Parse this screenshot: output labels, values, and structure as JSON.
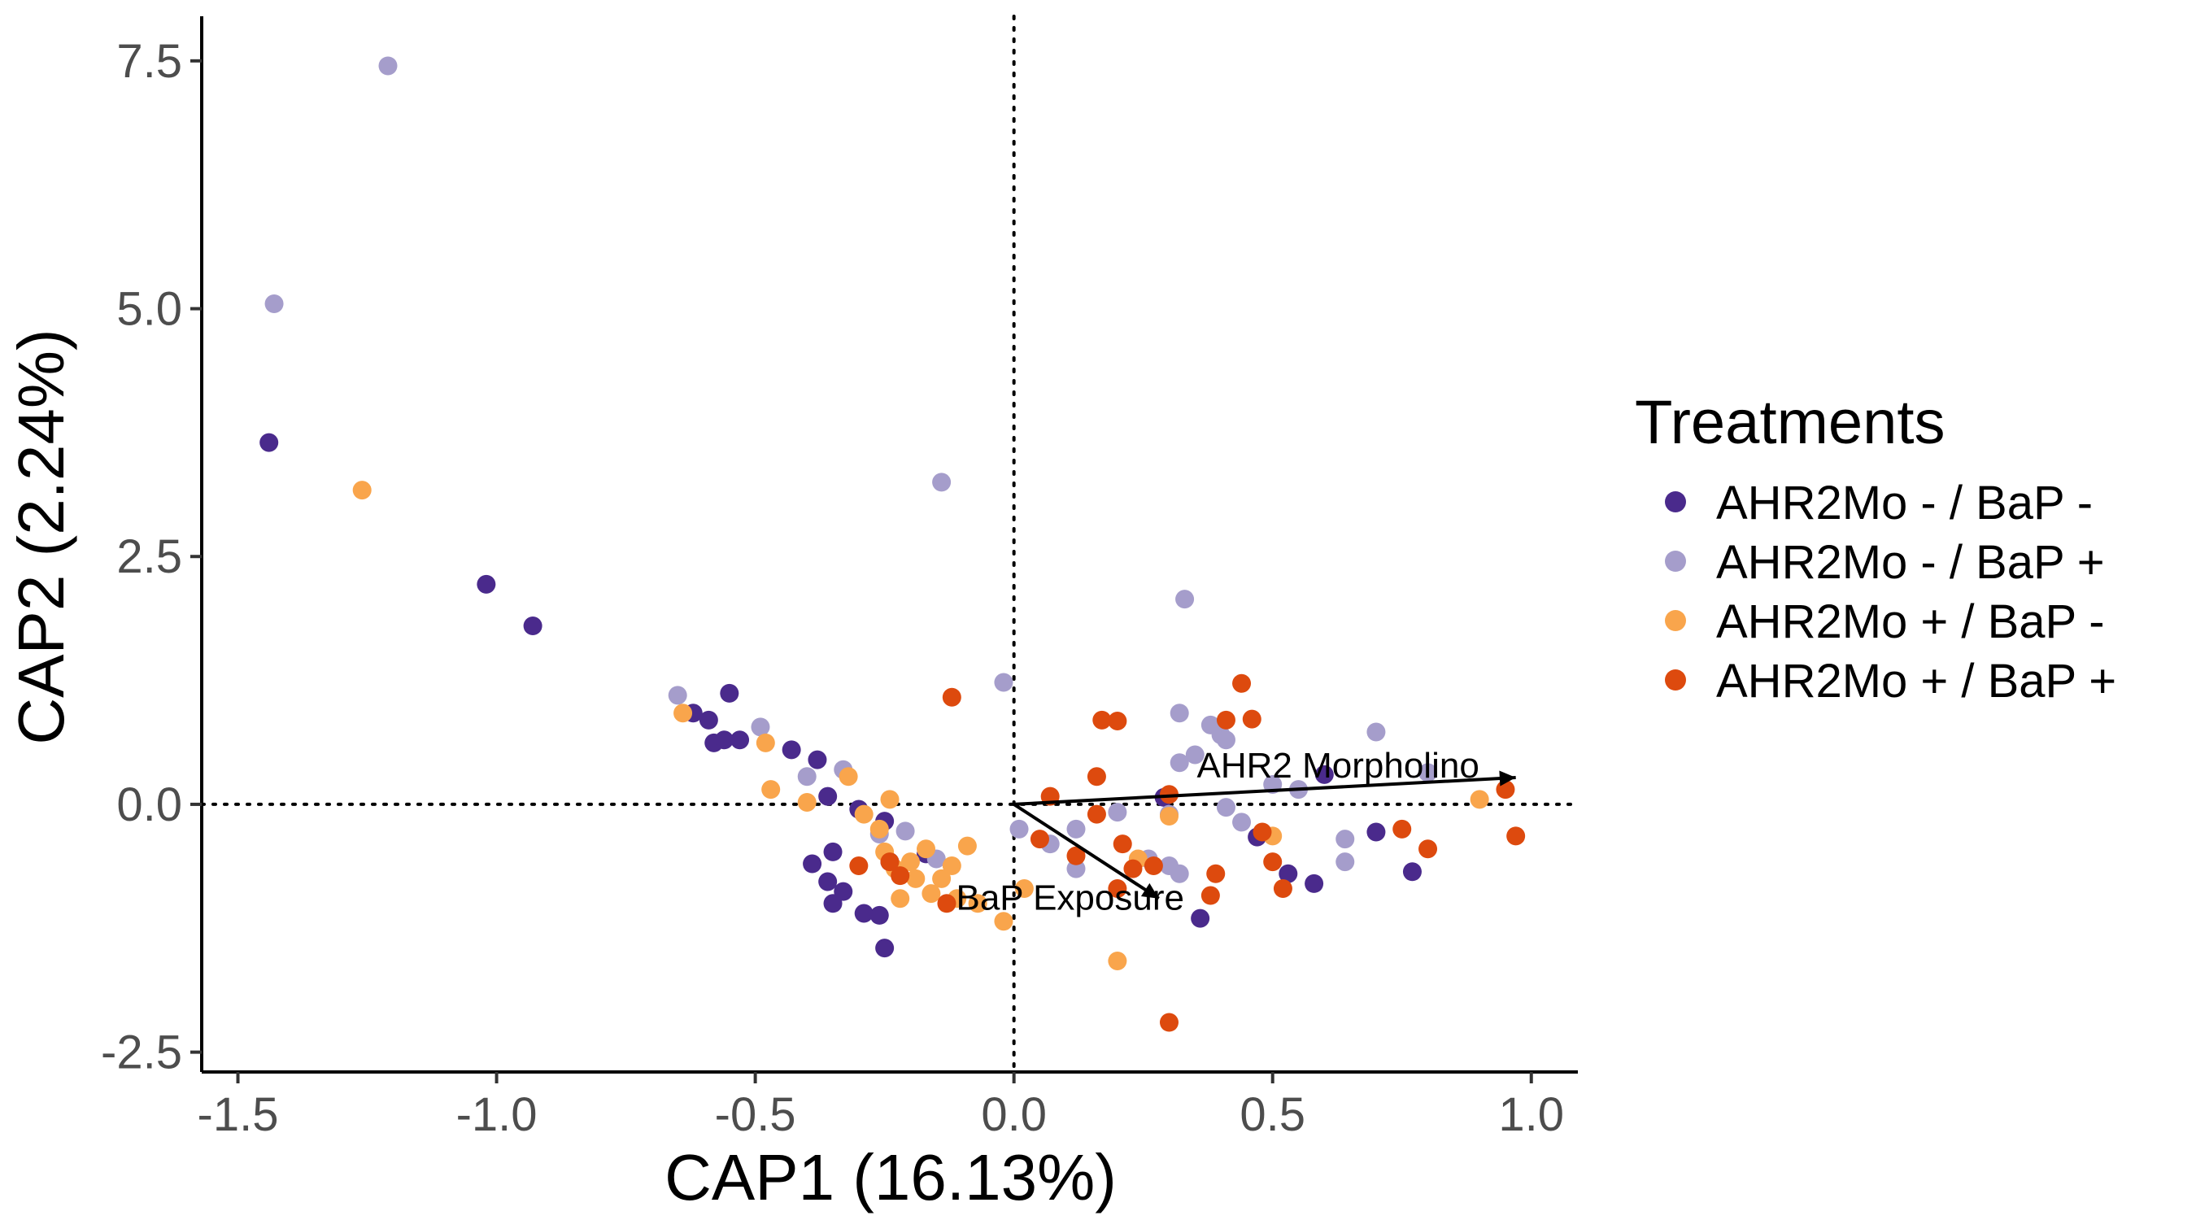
{
  "chart_data": {
    "type": "scatter",
    "title": "",
    "xlabel": "CAP1 (16.13%)",
    "ylabel": "CAP2 (2.24%)",
    "xlim": [
      -1.57,
      1.09
    ],
    "ylim": [
      -2.7,
      7.95
    ],
    "x_ticks": [
      -1.5,
      -1.0,
      -0.5,
      0.0,
      0.5,
      1.0
    ],
    "x_tick_labels": [
      "-1.5",
      "-1.0",
      "-0.5",
      "0.0",
      "0.5",
      "1.0"
    ],
    "y_ticks": [
      -2.5,
      0.0,
      2.5,
      5.0,
      7.5
    ],
    "y_tick_labels": [
      "-2.5",
      "0.0",
      "2.5",
      "5.0",
      "7.5"
    ],
    "reference_lines": {
      "x": 0,
      "y": 0,
      "style": "dotted"
    },
    "grid": false,
    "legend": {
      "title": "Treatments",
      "position": "right"
    },
    "series": [
      {
        "name": "AHR2Mo - / BaP -",
        "color": "#4a2a8c",
        "points": [
          [
            -1.44,
            3.65
          ],
          [
            -1.02,
            2.22
          ],
          [
            -0.93,
            1.8
          ],
          [
            -0.62,
            0.92
          ],
          [
            -0.59,
            0.85
          ],
          [
            -0.58,
            0.62
          ],
          [
            -0.55,
            1.12
          ],
          [
            -0.56,
            0.65
          ],
          [
            -0.53,
            0.65
          ],
          [
            -0.43,
            0.55
          ],
          [
            -0.38,
            0.45
          ],
          [
            -0.36,
            0.08
          ],
          [
            -0.39,
            -0.6
          ],
          [
            -0.36,
            -0.78
          ],
          [
            -0.35,
            -0.48
          ],
          [
            -0.35,
            -1.0
          ],
          [
            -0.33,
            -0.88
          ],
          [
            -0.3,
            -0.05
          ],
          [
            -0.29,
            -1.1
          ],
          [
            -0.26,
            -1.12
          ],
          [
            -0.25,
            -1.45
          ],
          [
            -0.25,
            -0.17
          ],
          [
            -0.24,
            -0.58
          ],
          [
            -0.17,
            -0.5
          ],
          [
            0.29,
            0.07
          ],
          [
            0.36,
            -1.15
          ],
          [
            0.47,
            -0.33
          ],
          [
            0.53,
            -0.7
          ],
          [
            0.58,
            -0.8
          ],
          [
            0.7,
            -0.28
          ],
          [
            0.77,
            -0.68
          ],
          [
            0.6,
            0.3
          ]
        ]
      },
      {
        "name": "AHR2Mo - / BaP +",
        "color": "#a59dcb",
        "points": [
          [
            -1.21,
            7.45
          ],
          [
            -1.43,
            5.05
          ],
          [
            -0.65,
            1.1
          ],
          [
            -0.49,
            0.78
          ],
          [
            -0.4,
            0.28
          ],
          [
            -0.33,
            0.35
          ],
          [
            -0.26,
            -0.3
          ],
          [
            -0.21,
            -0.27
          ],
          [
            -0.15,
            -0.55
          ],
          [
            -0.02,
            1.23
          ],
          [
            -0.14,
            3.25
          ],
          [
            0.01,
            -0.25
          ],
          [
            0.07,
            -0.4
          ],
          [
            0.12,
            -0.25
          ],
          [
            0.12,
            -0.65
          ],
          [
            0.2,
            -0.08
          ],
          [
            0.26,
            -0.55
          ],
          [
            0.3,
            -0.62
          ],
          [
            0.32,
            0.42
          ],
          [
            0.32,
            -0.7
          ],
          [
            0.33,
            2.07
          ],
          [
            0.32,
            0.92
          ],
          [
            0.35,
            0.5
          ],
          [
            0.38,
            0.8
          ],
          [
            0.4,
            0.7
          ],
          [
            0.41,
            0.65
          ],
          [
            0.41,
            -0.03
          ],
          [
            0.44,
            -0.18
          ],
          [
            0.5,
            0.2
          ],
          [
            0.55,
            0.15
          ],
          [
            0.64,
            -0.35
          ],
          [
            0.64,
            -0.58
          ],
          [
            0.7,
            0.73
          ],
          [
            0.8,
            0.32
          ],
          [
            0.3,
            -0.1
          ]
        ]
      },
      {
        "name": "AHR2Mo + / BaP -",
        "color": "#f9a54c",
        "points": [
          [
            -1.26,
            3.17
          ],
          [
            -0.64,
            0.92
          ],
          [
            -0.48,
            0.62
          ],
          [
            -0.47,
            0.15
          ],
          [
            -0.4,
            0.02
          ],
          [
            -0.32,
            0.28
          ],
          [
            -0.29,
            -0.1
          ],
          [
            -0.26,
            -0.25
          ],
          [
            -0.25,
            -0.48
          ],
          [
            -0.24,
            0.05
          ],
          [
            -0.23,
            -0.65
          ],
          [
            -0.22,
            -0.95
          ],
          [
            -0.2,
            -0.58
          ],
          [
            -0.19,
            -0.75
          ],
          [
            -0.17,
            -0.45
          ],
          [
            -0.16,
            -0.9
          ],
          [
            -0.14,
            -0.75
          ],
          [
            -0.12,
            -0.62
          ],
          [
            -0.11,
            -0.95
          ],
          [
            -0.09,
            -0.42
          ],
          [
            -0.02,
            -1.18
          ],
          [
            -0.07,
            -1.0
          ],
          [
            0.02,
            -0.85
          ],
          [
            0.2,
            -1.58
          ],
          [
            0.24,
            -0.55
          ],
          [
            0.3,
            -0.12
          ],
          [
            0.5,
            -0.32
          ],
          [
            0.9,
            0.05
          ]
        ]
      },
      {
        "name": "AHR2Mo + / BaP +",
        "color": "#dd4a0e",
        "points": [
          [
            -0.12,
            1.08
          ],
          [
            -0.3,
            -0.62
          ],
          [
            -0.24,
            -0.58
          ],
          [
            -0.22,
            -0.72
          ],
          [
            -0.13,
            -1.0
          ],
          [
            0.05,
            -0.35
          ],
          [
            0.07,
            0.08
          ],
          [
            0.12,
            -0.52
          ],
          [
            0.16,
            -0.1
          ],
          [
            0.16,
            0.28
          ],
          [
            0.17,
            0.85
          ],
          [
            0.2,
            0.84
          ],
          [
            0.2,
            -0.85
          ],
          [
            0.21,
            -0.4
          ],
          [
            0.23,
            -0.65
          ],
          [
            0.27,
            -0.62
          ],
          [
            0.3,
            0.1
          ],
          [
            0.3,
            -2.2
          ],
          [
            0.38,
            -0.92
          ],
          [
            0.39,
            -0.7
          ],
          [
            0.41,
            0.85
          ],
          [
            0.44,
            1.22
          ],
          [
            0.46,
            0.86
          ],
          [
            0.48,
            -0.28
          ],
          [
            0.5,
            -0.58
          ],
          [
            0.52,
            -0.85
          ],
          [
            0.75,
            -0.25
          ],
          [
            0.8,
            -0.45
          ],
          [
            0.95,
            0.15
          ],
          [
            0.97,
            -0.32
          ]
        ]
      }
    ],
    "arrows": [
      {
        "label": "AHR2 Morpholino",
        "x": 0.97,
        "y": 0.27
      },
      {
        "label": "BaP Exposure",
        "x": 0.28,
        "y": -0.95
      }
    ]
  }
}
